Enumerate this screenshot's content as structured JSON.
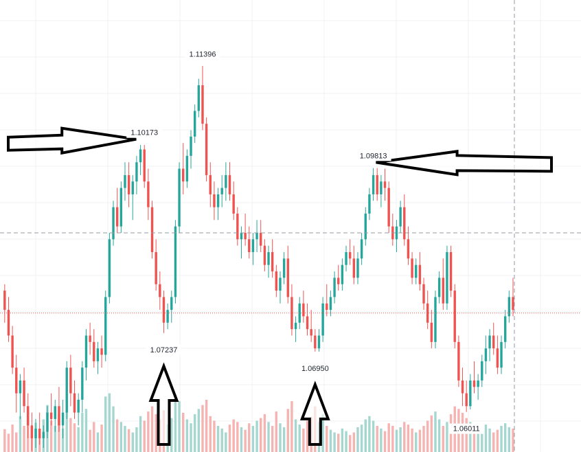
{
  "chart_data": {
    "type": "candlestick",
    "x_label": "",
    "y_label": "",
    "ylim": [
      1.0545,
      1.12
    ],
    "grid": true,
    "colors": {
      "up": "#26a69a",
      "down": "#ef5350",
      "up_volume": "#a5d6d0",
      "down_volume": "#f5b3b1",
      "grid": "#eef0f3",
      "crosshair": "#9598a1",
      "last_price_line": "#ef5350",
      "annotation_arrow": "#000000"
    },
    "candles": [
      [
        1.079,
        1.08,
        1.074,
        1.076
      ],
      [
        1.076,
        1.078,
        1.071,
        1.072
      ],
      [
        1.072,
        1.0735,
        1.066,
        1.067
      ],
      [
        1.067,
        1.069,
        1.06,
        1.063
      ],
      [
        1.063,
        1.066,
        1.059,
        1.065
      ],
      [
        1.065,
        1.067,
        1.06,
        1.061
      ],
      [
        1.061,
        1.063,
        1.056,
        1.058
      ],
      [
        1.058,
        1.06,
        1.054,
        1.056
      ],
      [
        1.056,
        1.059,
        1.0545,
        1.0575
      ],
      [
        1.0575,
        1.06,
        1.055,
        1.056
      ],
      [
        1.056,
        1.058,
        1.0545,
        1.057
      ],
      [
        1.057,
        1.061,
        1.056,
        1.06
      ],
      [
        1.06,
        1.063,
        1.058,
        1.059
      ],
      [
        1.059,
        1.062,
        1.057,
        1.061
      ],
      [
        1.061,
        1.064,
        1.057,
        1.058
      ],
      [
        1.058,
        1.062,
        1.056,
        1.06
      ],
      [
        1.06,
        1.068,
        1.059,
        1.067
      ],
      [
        1.067,
        1.069,
        1.061,
        1.063
      ],
      [
        1.063,
        1.065,
        1.059,
        1.06
      ],
      [
        1.06,
        1.063,
        1.058,
        1.062
      ],
      [
        1.062,
        1.068,
        1.06,
        1.067
      ],
      [
        1.067,
        1.073,
        1.065,
        1.072
      ],
      [
        1.072,
        1.074,
        1.069,
        1.071
      ],
      [
        1.071,
        1.073,
        1.067,
        1.068
      ],
      [
        1.068,
        1.071,
        1.066,
        1.07
      ],
      [
        1.07,
        1.072,
        1.067,
        1.069
      ],
      [
        1.069,
        1.079,
        1.068,
        1.078
      ],
      [
        1.078,
        1.088,
        1.077,
        1.087
      ],
      [
        1.087,
        1.093,
        1.086,
        1.092
      ],
      [
        1.092,
        1.095,
        1.088,
        1.089
      ],
      [
        1.089,
        1.096,
        1.088,
        1.095
      ],
      [
        1.095,
        1.099,
        1.093,
        1.097
      ],
      [
        1.097,
        1.099,
        1.092,
        1.094
      ],
      [
        1.094,
        1.097,
        1.09,
        1.096
      ],
      [
        1.096,
        1.1,
        1.094,
        1.099
      ],
      [
        1.099,
        1.1017,
        1.097,
        1.101
      ],
      [
        1.101,
        1.1017,
        1.095,
        1.096
      ],
      [
        1.096,
        1.098,
        1.09,
        1.092
      ],
      [
        1.092,
        1.093,
        1.084,
        1.085
      ],
      [
        1.085,
        1.087,
        1.079,
        1.08
      ],
      [
        1.08,
        1.082,
        1.076,
        1.078
      ],
      [
        1.078,
        1.079,
        1.0724,
        1.074
      ],
      [
        1.074,
        1.077,
        1.073,
        1.076
      ],
      [
        1.076,
        1.079,
        1.074,
        1.078
      ],
      [
        1.078,
        1.09,
        1.077,
        1.089
      ],
      [
        1.089,
        1.099,
        1.088,
        1.098
      ],
      [
        1.098,
        1.102,
        1.094,
        1.096
      ],
      [
        1.096,
        1.101,
        1.095,
        1.1
      ],
      [
        1.1,
        1.104,
        1.098,
        1.103
      ],
      [
        1.103,
        1.108,
        1.102,
        1.107
      ],
      [
        1.107,
        1.112,
        1.106,
        1.111
      ],
      [
        1.111,
        1.114,
        1.104,
        1.105
      ],
      [
        1.105,
        1.106,
        1.096,
        1.097
      ],
      [
        1.097,
        1.099,
        1.092,
        1.094
      ],
      [
        1.094,
        1.096,
        1.09,
        1.092
      ],
      [
        1.092,
        1.095,
        1.09,
        1.094
      ],
      [
        1.094,
        1.097,
        1.092,
        1.095
      ],
      [
        1.095,
        1.099,
        1.093,
        1.097
      ],
      [
        1.097,
        1.099,
        1.093,
        1.094
      ],
      [
        1.094,
        1.096,
        1.09,
        1.091
      ],
      [
        1.091,
        1.092,
        1.086,
        1.087
      ],
      [
        1.087,
        1.089,
        1.084,
        1.088
      ],
      [
        1.088,
        1.091,
        1.086,
        1.087
      ],
      [
        1.087,
        1.089,
        1.084,
        1.085
      ],
      [
        1.085,
        1.088,
        1.083,
        1.087
      ],
      [
        1.087,
        1.09,
        1.085,
        1.088
      ],
      [
        1.088,
        1.09,
        1.085,
        1.086
      ],
      [
        1.086,
        1.087,
        1.082,
        1.083
      ],
      [
        1.083,
        1.086,
        1.081,
        1.085
      ],
      [
        1.085,
        1.087,
        1.081,
        1.082
      ],
      [
        1.082,
        1.083,
        1.078,
        1.079
      ],
      [
        1.079,
        1.082,
        1.077,
        1.081
      ],
      [
        1.081,
        1.085,
        1.08,
        1.084
      ],
      [
        1.084,
        1.086,
        1.077,
        1.078
      ],
      [
        1.078,
        1.08,
        1.072,
        1.073
      ],
      [
        1.073,
        1.075,
        1.071,
        1.074
      ],
      [
        1.074,
        1.078,
        1.073,
        1.077
      ],
      [
        1.077,
        1.079,
        1.074,
        1.075
      ],
      [
        1.075,
        1.077,
        1.072,
        1.073
      ],
      [
        1.073,
        1.076,
        1.071,
        1.072
      ],
      [
        1.072,
        1.073,
        1.0695,
        1.07
      ],
      [
        1.07,
        1.073,
        1.0695,
        1.072
      ],
      [
        1.072,
        1.078,
        1.071,
        1.077
      ],
      [
        1.077,
        1.08,
        1.075,
        1.076
      ],
      [
        1.076,
        1.079,
        1.075,
        1.078
      ],
      [
        1.078,
        1.082,
        1.077,
        1.081
      ],
      [
        1.081,
        1.083,
        1.079,
        1.08
      ],
      [
        1.08,
        1.084,
        1.079,
        1.083
      ],
      [
        1.083,
        1.086,
        1.082,
        1.085
      ],
      [
        1.085,
        1.087,
        1.083,
        1.084
      ],
      [
        1.084,
        1.086,
        1.08,
        1.081
      ],
      [
        1.081,
        1.085,
        1.08,
        1.084
      ],
      [
        1.084,
        1.088,
        1.083,
        1.087
      ],
      [
        1.087,
        1.092,
        1.086,
        1.091
      ],
      [
        1.091,
        1.095,
        1.09,
        1.094
      ],
      [
        1.094,
        1.0981,
        1.093,
        1.097
      ],
      [
        1.097,
        1.0981,
        1.093,
        1.094
      ],
      [
        1.094,
        1.097,
        1.092,
        1.096
      ],
      [
        1.096,
        1.098,
        1.093,
        1.095
      ],
      [
        1.095,
        1.096,
        1.088,
        1.089
      ],
      [
        1.089,
        1.091,
        1.086,
        1.087
      ],
      [
        1.087,
        1.09,
        1.085,
        1.089
      ],
      [
        1.089,
        1.093,
        1.088,
        1.092
      ],
      [
        1.092,
        1.094,
        1.086,
        1.087
      ],
      [
        1.087,
        1.089,
        1.083,
        1.084
      ],
      [
        1.084,
        1.085,
        1.08,
        1.081
      ],
      [
        1.081,
        1.084,
        1.08,
        1.083
      ],
      [
        1.083,
        1.085,
        1.079,
        1.08
      ],
      [
        1.08,
        1.081,
        1.076,
        1.077
      ],
      [
        1.077,
        1.079,
        1.073,
        1.074
      ],
      [
        1.074,
        1.076,
        1.07,
        1.071
      ],
      [
        1.071,
        1.079,
        1.07,
        1.078
      ],
      [
        1.078,
        1.082,
        1.077,
        1.081
      ],
      [
        1.081,
        1.084,
        1.076,
        1.077
      ],
      [
        1.077,
        1.086,
        1.076,
        1.085
      ],
      [
        1.085,
        1.086,
        1.078,
        1.079
      ],
      [
        1.079,
        1.08,
        1.07,
        1.071
      ],
      [
        1.071,
        1.072,
        1.064,
        1.065
      ],
      [
        1.065,
        1.067,
        1.061,
        1.063
      ],
      [
        1.063,
        1.065,
        1.0601,
        1.061
      ],
      [
        1.061,
        1.066,
        1.0605,
        1.065
      ],
      [
        1.065,
        1.068,
        1.063,
        1.064
      ],
      [
        1.064,
        1.066,
        1.062,
        1.065
      ],
      [
        1.065,
        1.069,
        1.064,
        1.068
      ],
      [
        1.068,
        1.072,
        1.066,
        1.07
      ],
      [
        1.07,
        1.073,
        1.068,
        1.072
      ],
      [
        1.072,
        1.074,
        1.069,
        1.07
      ],
      [
        1.07,
        1.072,
        1.066,
        1.067
      ],
      [
        1.067,
        1.072,
        1.066,
        1.071
      ],
      [
        1.071,
        1.076,
        1.07,
        1.075
      ],
      [
        1.075,
        1.079,
        1.074,
        1.078
      ],
      [
        1.078,
        1.081,
        1.075,
        1.076
      ]
    ],
    "volumes": [
      0.35,
      0.28,
      0.42,
      0.3,
      0.55,
      0.4,
      0.62,
      0.38,
      0.45,
      0.3,
      0.5,
      0.72,
      0.48,
      0.4,
      0.58,
      0.36,
      0.8,
      0.52,
      0.44,
      0.38,
      0.6,
      0.66,
      0.34,
      0.46,
      0.3,
      0.42,
      0.85,
      0.9,
      0.7,
      0.5,
      0.46,
      0.4,
      0.35,
      0.3,
      0.38,
      0.55,
      0.48,
      0.62,
      0.7,
      0.58,
      0.5,
      0.64,
      0.42,
      0.52,
      0.88,
      0.78,
      0.6,
      0.5,
      0.44,
      0.58,
      0.66,
      0.72,
      0.8,
      0.55,
      0.48,
      0.4,
      0.36,
      0.3,
      0.42,
      0.5,
      0.46,
      0.38,
      0.34,
      0.44,
      0.4,
      0.48,
      0.52,
      0.58,
      0.46,
      0.4,
      0.62,
      0.44,
      0.38,
      0.66,
      0.78,
      0.5,
      0.42,
      0.36,
      0.48,
      0.54,
      0.7,
      0.46,
      0.58,
      0.4,
      0.34,
      0.3,
      0.28,
      0.36,
      0.32,
      0.26,
      0.3,
      0.38,
      0.42,
      0.5,
      0.55,
      0.48,
      0.4,
      0.36,
      0.32,
      0.44,
      0.4,
      0.34,
      0.38,
      0.46,
      0.42,
      0.36,
      0.3,
      0.34,
      0.4,
      0.48,
      0.56,
      0.62,
      0.5,
      0.4,
      0.46,
      0.58,
      0.7,
      0.66,
      0.6,
      0.52,
      0.46,
      0.4,
      0.34,
      0.38,
      0.42,
      0.36,
      0.3,
      0.34,
      0.4,
      0.44,
      0.38,
      0.36
    ],
    "annotations": [
      {
        "label": "1.11396",
        "price": 1.11396,
        "candle": 51,
        "pos": "above"
      },
      {
        "label": "1.10173",
        "price": 1.10173,
        "candle": 36,
        "pos": "above"
      },
      {
        "label": "1.09813",
        "price": 1.09813,
        "candle": 95,
        "pos": "above"
      },
      {
        "label": "1.07237",
        "price": 1.07237,
        "candle": 41,
        "pos": "below"
      },
      {
        "label": "1.06950",
        "price": 1.0695,
        "candle": 80,
        "pos": "below"
      },
      {
        "label": "1.06011",
        "price": 1.06011,
        "candle": 119,
        "pos": "below"
      }
    ],
    "reference_lines": {
      "crosshair_price": 1.088,
      "last_price": 1.0755
    },
    "arrows": [
      {
        "name": "arrow-right-to-1-10173",
        "direction": "right",
        "target": "1.10173"
      },
      {
        "name": "arrow-left-to-1-09813",
        "direction": "left",
        "target": "1.09813"
      },
      {
        "name": "arrow-up-to-1-07237",
        "direction": "up",
        "target": "1.07237"
      },
      {
        "name": "arrow-up-to-1-06950",
        "direction": "up",
        "target": "1.06950"
      }
    ]
  }
}
